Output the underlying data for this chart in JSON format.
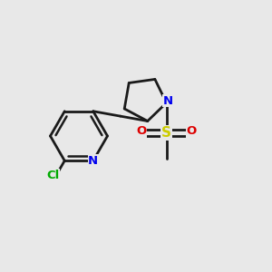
{
  "bg_color": "#e8e8e8",
  "bond_color": "#1a1a1a",
  "N_color": "#0000ee",
  "Cl_color": "#00aa00",
  "S_color": "#cccc00",
  "O_color": "#dd0000",
  "bond_lw": 2.0,
  "figsize": [
    3.0,
    3.0
  ],
  "dpi": 100,
  "xlim": [
    0,
    10
  ],
  "ylim": [
    0,
    10
  ]
}
